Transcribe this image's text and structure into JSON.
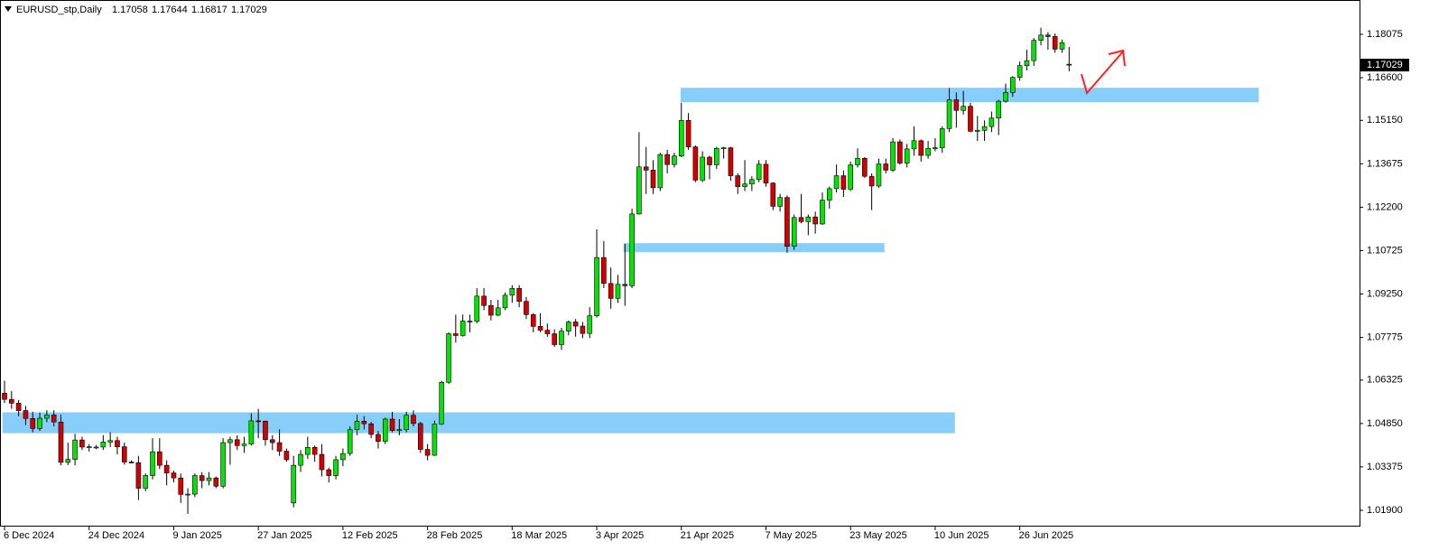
{
  "chart_data": {
    "type": "candlestick",
    "symbol": "EURUSD_stp,Daily",
    "categories": [
      "6 Dec 2024",
      null,
      null,
      null,
      null,
      null,
      null,
      null,
      null,
      null,
      null,
      null,
      "24 Dec 2024",
      null,
      null,
      null,
      null,
      null,
      null,
      null,
      null,
      null,
      null,
      null,
      "9 Jan 2025",
      null,
      null,
      null,
      null,
      null,
      null,
      null,
      null,
      null,
      null,
      null,
      "27 Jan 2025",
      null,
      null,
      null,
      null,
      null,
      null,
      null,
      null,
      null,
      null,
      null,
      "12 Feb 2025",
      null,
      null,
      null,
      null,
      null,
      null,
      null,
      null,
      null,
      null,
      null,
      "28 Feb 2025",
      null,
      null,
      null,
      null,
      null,
      null,
      null,
      null,
      null,
      null,
      null,
      "18 Mar 2025",
      null,
      null,
      null,
      null,
      null,
      null,
      null,
      null,
      null,
      null,
      null,
      "3 Apr 2025",
      null,
      null,
      null,
      null,
      null,
      null,
      null,
      null,
      null,
      null,
      null,
      "21 Apr 2025",
      null,
      null,
      null,
      null,
      null,
      null,
      null,
      null,
      null,
      null,
      null,
      "7 May 2025",
      null,
      null,
      null,
      null,
      null,
      null,
      null,
      null,
      null,
      null,
      null,
      "23 May 2025",
      null,
      null,
      null,
      null,
      null,
      null,
      null,
      null,
      null,
      null,
      null,
      "10 Jun 2025",
      null,
      null,
      null,
      null,
      null,
      null,
      null,
      null,
      null,
      null,
      null,
      "26 Jun 2025",
      null,
      null,
      null,
      null,
      null,
      null,
      null
    ],
    "open": [
      1.0588,
      1.0567,
      1.0554,
      1.0529,
      1.0502,
      1.0468,
      1.0503,
      1.0514,
      1.049,
      1.0353,
      1.0363,
      1.0429,
      1.0406,
      1.0405,
      1.0405,
      1.0422,
      1.0427,
      1.0406,
      1.0354,
      1.0352,
      1.0265,
      1.0308,
      1.0389,
      1.0343,
      1.0317,
      1.03,
      1.0244,
      1.0245,
      1.0308,
      1.0291,
      1.03,
      1.0272,
      1.042,
      1.043,
      1.041,
      1.0415,
      1.0494,
      1.0493,
      1.043,
      1.042,
      1.0391,
      1.0215,
      1.0343,
      1.038,
      1.0404,
      1.038,
      1.0328,
      1.0308,
      1.0362,
      1.0383,
      1.0464,
      1.0493,
      1.0484,
      1.0448,
      1.0424,
      1.05,
      1.0461,
      1.0464,
      1.0513,
      1.0485,
      1.0397,
      1.0377,
      1.0483,
      1.0625,
      1.079,
      1.0784,
      1.0833,
      1.0832,
      1.0918,
      1.0886,
      1.0853,
      1.0878,
      1.0921,
      1.0944,
      1.09,
      1.0855,
      1.0815,
      1.0802,
      1.079,
      1.0753,
      1.0799,
      1.083,
      1.0816,
      1.0791,
      1.0851,
      1.1049,
      1.0961,
      1.091,
      1.0958,
      1.0953,
      1.1197,
      1.1357,
      1.1346,
      1.1286,
      1.1399,
      1.1365,
      1.1394,
      1.1515,
      1.1425,
      1.1312,
      1.139,
      1.1364,
      1.142,
      1.1422,
      1.1327,
      1.129,
      1.1299,
      1.1314,
      1.1366,
      1.1302,
      1.1223,
      1.1253,
      1.1087,
      1.1185,
      1.1171,
      1.1187,
      1.1163,
      1.1244,
      1.1283,
      1.1327,
      1.1281,
      1.1364,
      1.1386,
      1.1325,
      1.1292,
      1.1367,
      1.1346,
      1.1442,
      1.137,
      1.1418,
      1.1446,
      1.1396,
      1.142,
      1.1422,
      1.1487,
      1.1585,
      1.1549,
      1.1563,
      1.1478,
      1.1481,
      1.1494,
      1.1523,
      1.158,
      1.161,
      1.1661,
      1.1701,
      1.1718,
      1.1787,
      1.1805,
      1.18,
      1.1757,
      1.17058
    ],
    "high": [
      1.063,
      1.0595,
      1.0565,
      1.0545,
      1.0525,
      1.0522,
      1.053,
      1.053,
      1.0515,
      1.042,
      1.045,
      1.044,
      1.0415,
      1.0412,
      1.0445,
      1.0455,
      1.044,
      1.042,
      1.036,
      1.0375,
      1.0315,
      1.0435,
      1.0435,
      1.036,
      1.0325,
      1.0315,
      1.0265,
      1.0315,
      1.032,
      1.032,
      1.0305,
      1.0435,
      1.044,
      1.0445,
      1.044,
      1.052,
      1.0535,
      1.0495,
      1.0445,
      1.0465,
      1.04,
      1.0375,
      1.0395,
      1.044,
      1.041,
      1.0415,
      1.0335,
      1.0375,
      1.04,
      1.0475,
      1.0515,
      1.051,
      1.049,
      1.046,
      1.0505,
      1.0525,
      1.05,
      1.0525,
      1.053,
      1.049,
      1.0415,
      1.0495,
      1.063,
      1.0795,
      1.0855,
      1.0855,
      1.0855,
      1.0945,
      1.0945,
      1.0905,
      1.0905,
      1.093,
      1.0955,
      1.0955,
      1.0915,
      1.086,
      1.086,
      1.0825,
      1.0805,
      1.081,
      1.0835,
      1.084,
      1.083,
      1.088,
      1.1145,
      1.1105,
      1.1015,
      1.099,
      1.1095,
      1.1215,
      1.1475,
      1.1425,
      1.138,
      1.1405,
      1.1415,
      1.1405,
      1.1575,
      1.154,
      1.143,
      1.141,
      1.1395,
      1.1425,
      1.1425,
      1.1425,
      1.1335,
      1.138,
      1.1325,
      1.138,
      1.138,
      1.1305,
      1.1265,
      1.126,
      1.1195,
      1.1265,
      1.1195,
      1.1205,
      1.127,
      1.129,
      1.1365,
      1.1345,
      1.1375,
      1.142,
      1.139,
      1.1335,
      1.1385,
      1.1385,
      1.1455,
      1.145,
      1.1435,
      1.1495,
      1.145,
      1.1445,
      1.1455,
      1.1495,
      1.1625,
      1.161,
      1.1615,
      1.1575,
      1.153,
      1.1515,
      1.1545,
      1.1585,
      1.164,
      1.1665,
      1.1715,
      1.1755,
      1.1795,
      1.183,
      1.1815,
      1.181,
      1.179,
      1.17644
    ],
    "low": [
      1.0555,
      1.0535,
      1.051,
      1.048,
      1.0455,
      1.046,
      1.049,
      1.0475,
      1.0343,
      1.0344,
      1.0343,
      1.0395,
      1.039,
      1.0398,
      1.0395,
      1.0405,
      1.038,
      1.0345,
      1.035,
      1.0225,
      1.0255,
      1.0295,
      1.033,
      1.0275,
      1.0285,
      1.0215,
      1.0178,
      1.0235,
      1.0265,
      1.0275,
      1.0265,
      1.0265,
      1.0345,
      1.0395,
      1.0385,
      1.041,
      1.0435,
      1.041,
      1.0395,
      1.0375,
      1.0355,
      1.02,
      1.032,
      1.0365,
      1.0355,
      1.0305,
      1.0285,
      1.0295,
      1.034,
      1.0375,
      1.0445,
      1.0465,
      1.0435,
      1.04,
      1.0415,
      1.0455,
      1.0445,
      1.0455,
      1.0475,
      1.0385,
      1.036,
      1.0375,
      1.048,
      1.062,
      1.076,
      1.078,
      1.0795,
      1.0825,
      1.087,
      1.0835,
      1.085,
      1.087,
      1.0895,
      1.088,
      1.084,
      1.0795,
      1.0795,
      1.078,
      1.0745,
      1.0735,
      1.0785,
      1.078,
      1.0775,
      1.0775,
      1.0845,
      1.0945,
      1.0875,
      1.0895,
      1.0885,
      1.0945,
      1.1195,
      1.1265,
      1.1265,
      1.1275,
      1.1335,
      1.1355,
      1.139,
      1.1415,
      1.1305,
      1.1305,
      1.1315,
      1.135,
      1.1385,
      1.131,
      1.1265,
      1.1275,
      1.1275,
      1.1305,
      1.129,
      1.121,
      1.1205,
      1.1065,
      1.1075,
      1.1165,
      1.1125,
      1.113,
      1.116,
      1.1215,
      1.127,
      1.1255,
      1.1275,
      1.1355,
      1.132,
      1.121,
      1.1285,
      1.1335,
      1.134,
      1.1365,
      1.1355,
      1.1395,
      1.1375,
      1.1385,
      1.141,
      1.1405,
      1.1475,
      1.149,
      1.1535,
      1.1475,
      1.1445,
      1.1445,
      1.1475,
      1.1465,
      1.1575,
      1.1595,
      1.165,
      1.1685,
      1.17,
      1.177,
      1.1755,
      1.1745,
      1.1745,
      1.16817
    ],
    "close": [
      1.0567,
      1.0554,
      1.0529,
      1.0502,
      1.0468,
      1.0503,
      1.0514,
      1.049,
      1.0353,
      1.0363,
      1.0429,
      1.0405,
      1.0406,
      1.0405,
      1.0422,
      1.0427,
      1.0406,
      1.0354,
      1.0352,
      1.0265,
      1.0308,
      1.0389,
      1.0343,
      1.0317,
      1.03,
      1.0244,
      1.0245,
      1.0308,
      1.0291,
      1.03,
      1.0272,
      1.042,
      1.043,
      1.041,
      1.0415,
      1.0494,
      1.0493,
      1.043,
      1.042,
      1.0391,
      1.0362,
      1.0343,
      1.038,
      1.0404,
      1.038,
      1.0328,
      1.0308,
      1.0362,
      1.0383,
      1.0464,
      1.0493,
      1.0484,
      1.0448,
      1.0424,
      1.05,
      1.0461,
      1.0464,
      1.0513,
      1.0485,
      1.0397,
      1.0377,
      1.0483,
      1.0625,
      1.079,
      1.0784,
      1.0833,
      1.0832,
      1.0918,
      1.0886,
      1.0853,
      1.0878,
      1.0921,
      1.0944,
      1.09,
      1.0855,
      1.0815,
      1.0802,
      1.079,
      1.0753,
      1.0799,
      1.083,
      1.0816,
      1.0791,
      1.0851,
      1.1049,
      1.0961,
      1.091,
      1.0958,
      1.0953,
      1.1197,
      1.1357,
      1.1346,
      1.1286,
      1.1399,
      1.1365,
      1.1394,
      1.1515,
      1.1425,
      1.1312,
      1.139,
      1.1364,
      1.142,
      1.1422,
      1.1327,
      1.129,
      1.1299,
      1.1314,
      1.1366,
      1.1302,
      1.1223,
      1.1253,
      1.1087,
      1.1185,
      1.1171,
      1.1187,
      1.1163,
      1.1244,
      1.1283,
      1.1327,
      1.1281,
      1.1364,
      1.1386,
      1.1325,
      1.1292,
      1.1367,
      1.1346,
      1.1442,
      1.137,
      1.1418,
      1.1446,
      1.1396,
      1.142,
      1.1422,
      1.1487,
      1.1585,
      1.1549,
      1.1563,
      1.1478,
      1.1481,
      1.1494,
      1.1523,
      1.158,
      1.161,
      1.1661,
      1.1701,
      1.1718,
      1.1787,
      1.1805,
      1.18,
      1.1757,
      1.1779,
      1.17029
    ],
    "up_color": "#00e600",
    "down_color": "#d40000",
    "zones": [
      {
        "low": 1.1577,
        "high": 1.1626,
        "start": 95.9,
        "end": 177.9,
        "color": "#87cefa"
      },
      {
        "low": 1.1067,
        "high": 1.1098,
        "start": 87.8,
        "end": 124.8,
        "color": "#87cefa"
      },
      {
        "low": 1.0452,
        "high": 1.0523,
        "start": -0.3,
        "end": 134.8,
        "color": "#87cefa"
      }
    ],
    "ylim": [
      1.01378,
      1.19241
    ],
    "yticks": [
      {
        "value": 1.019,
        "label": "1.01900"
      },
      {
        "value": 1.03375,
        "label": "1.03375"
      },
      {
        "value": 1.0485,
        "label": "1.04850"
      },
      {
        "value": 1.06325,
        "label": "1.06325"
      },
      {
        "value": 1.07775,
        "label": "1.07775"
      },
      {
        "value": 1.0925,
        "label": "1.09250"
      },
      {
        "value": 1.10725,
        "label": "1.10725"
      },
      {
        "value": 1.122,
        "label": "1.12200"
      },
      {
        "value": 1.13675,
        "label": "1.13675"
      },
      {
        "value": 1.1515,
        "label": "1.15150"
      },
      {
        "value": 1.166,
        "label": "1.16600"
      },
      {
        "value": 1.18075,
        "label": "1.18075"
      }
    ]
  }
}
